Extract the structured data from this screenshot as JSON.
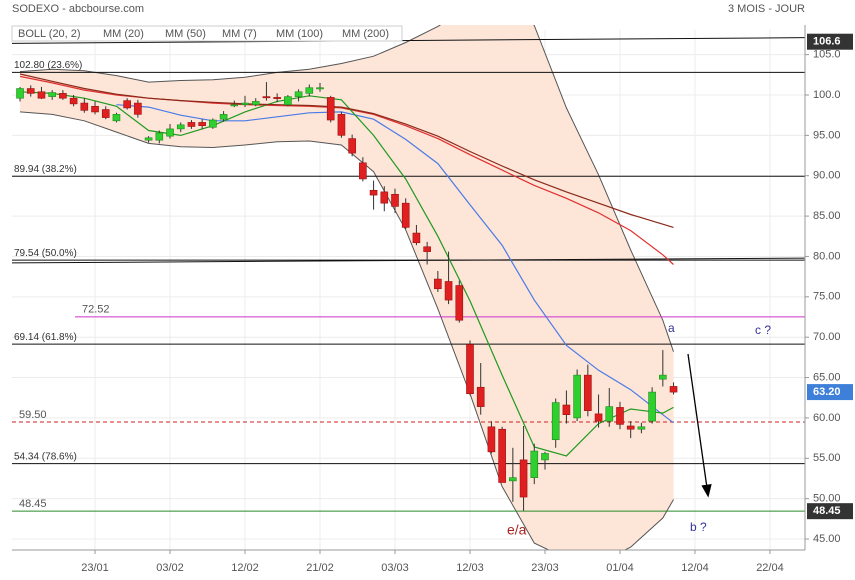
{
  "header": {
    "title": "SODEXO - abcbourse.com",
    "period": "3 MOIS - JOUR"
  },
  "chart_data": {
    "type": "candlestick",
    "xlim": [
      -0.75,
      73.27
    ],
    "xticks": [
      {
        "value": 7,
        "label": "23/01"
      },
      {
        "value": 14,
        "label": "03/02"
      },
      {
        "value": 21,
        "label": "12/02"
      },
      {
        "value": 28,
        "label": "21/02"
      },
      {
        "value": 35,
        "label": "03/03"
      },
      {
        "value": 42,
        "label": "12/03"
      },
      {
        "value": 49,
        "label": "23/03"
      },
      {
        "value": 56,
        "label": "01/04"
      },
      {
        "value": 63,
        "label": "12/04"
      },
      {
        "value": 70,
        "label": "22/04"
      }
    ],
    "ylim": [
      43.64,
      108.05
    ],
    "yticks": [
      {
        "value": 45,
        "label": "45.00"
      },
      {
        "value": 50,
        "label": "50.00"
      },
      {
        "value": 55,
        "label": "55.00"
      },
      {
        "value": 60,
        "label": "60.00"
      },
      {
        "value": 65,
        "label": "65.00"
      },
      {
        "value": 70,
        "label": "70.00"
      },
      {
        "value": 75,
        "label": "75.00"
      },
      {
        "value": 80,
        "label": "80.00"
      },
      {
        "value": 85,
        "label": "85.00"
      },
      {
        "value": 90,
        "label": "90.00"
      },
      {
        "value": 95,
        "label": "95.00"
      },
      {
        "value": 100,
        "label": "100.0"
      },
      {
        "value": 105,
        "label": "105.0"
      }
    ],
    "grid": true,
    "candles": {
      "up_color": "#2fcf2f",
      "down_color": "#e02020",
      "x": [
        0,
        1,
        2,
        3,
        4,
        5,
        6,
        7,
        8,
        9,
        10,
        11,
        12,
        13,
        14,
        15,
        16,
        17,
        18,
        19,
        20,
        21,
        22,
        23,
        24,
        25,
        26,
        27,
        28,
        29,
        30,
        31,
        32,
        33,
        34,
        35,
        36,
        37,
        38,
        39,
        40,
        41,
        42,
        43,
        44,
        45,
        46,
        47,
        48,
        49,
        50,
        51,
        52,
        53,
        54,
        55,
        56,
        57,
        58,
        59,
        60,
        61
      ],
      "open": [
        99.6,
        100.8,
        100.4,
        99.8,
        100.2,
        99.6,
        99.0,
        98.6,
        98.2,
        96.8,
        99.3,
        99.0,
        94.4,
        94.4,
        94.9,
        95.8,
        96.6,
        96.6,
        96.0,
        97.0,
        98.8,
        98.8,
        98.8,
        99.8,
        99.7,
        98.8,
        99.8,
        100.2,
        100.9,
        99.7,
        97.6,
        94.6,
        91.6,
        88.2,
        88.0,
        87.7,
        86.6,
        82.9,
        81.2,
        77.2,
        76.9,
        76.4,
        69.1,
        63.8,
        58.9,
        58.6,
        52.2,
        54.8,
        52.6,
        54.8,
        57.3,
        61.6,
        60.0,
        65.3,
        60.5,
        59.6,
        61.3,
        59.0,
        58.6,
        59.6,
        64.8,
        63.9
      ],
      "high": [
        101,
        101.2,
        101,
        100.6,
        100.6,
        100,
        99.6,
        99.2,
        98.6,
        97.8,
        99.6,
        99.4,
        94.9,
        95.6,
        96.4,
        96.6,
        96.9,
        97.0,
        97.1,
        98.0,
        99.3,
        99.9,
        99.6,
        101.6,
        100.2,
        100.0,
        100.7,
        101.3,
        101.5,
        99.9,
        97.9,
        95.1,
        92.3,
        89.4,
        88.7,
        88.4,
        87.2,
        83.9,
        81.8,
        78.2,
        80.6,
        77.0,
        69.6,
        66.8,
        59.6,
        58.9,
        56.3,
        59.0,
        56.8,
        55.8,
        62.4,
        63.4,
        66.0,
        66.6,
        62.9,
        63.7,
        62.0,
        59.6,
        59.4,
        63.8,
        68.4,
        64.4
      ],
      "low": [
        99.2,
        99.8,
        99.5,
        99.4,
        99.4,
        98.6,
        97.8,
        97.6,
        97.0,
        96.6,
        98.2,
        97.2,
        94.1,
        94.0,
        94.6,
        95.4,
        95.8,
        95.8,
        95.8,
        96.7,
        98.5,
        98.5,
        98.6,
        99.3,
        99.1,
        98.6,
        99.2,
        99.8,
        100.4,
        96.6,
        94.7,
        92.4,
        89.3,
        85.8,
        85.6,
        85.4,
        83.4,
        81.4,
        79.0,
        75.6,
        74.1,
        71.8,
        62.8,
        60.4,
        55.6,
        52.0,
        49.6,
        48.5,
        51.8,
        53.6,
        56.3,
        59.3,
        59.6,
        60.2,
        58.8,
        58.9,
        58.6,
        57.5,
        58.1,
        59.3,
        63.9,
        62.9
      ],
      "close": [
        100.8,
        100.2,
        99.6,
        100.3,
        99.6,
        98.9,
        98.1,
        97.9,
        97.2,
        97.6,
        98.4,
        97.6,
        94.7,
        95.3,
        95.8,
        96.3,
        96.1,
        96.2,
        96.9,
        97.6,
        98.8,
        99.0,
        99.2,
        99.7,
        99.6,
        99.8,
        100.4,
        100.9,
        100.9,
        96.9,
        95.0,
        92.8,
        89.6,
        87.6,
        86.6,
        86.2,
        83.6,
        81.7,
        80.6,
        76.0,
        74.6,
        72.1,
        63.0,
        61.4,
        55.8,
        52.0,
        52.6,
        50.2,
        55.9,
        55.6,
        61.9,
        60.4,
        65.3,
        60.9,
        59.6,
        61.4,
        59.2,
        58.6,
        58.9,
        63.2,
        65.3,
        63.2
      ]
    },
    "bollinger": {
      "name": "BOLL (20, 2)",
      "color": "#555555",
      "fill": "#fde5d8",
      "x": [
        0,
        3,
        6,
        9,
        12,
        15,
        18,
        21,
        24,
        27,
        30,
        33,
        36,
        39,
        42,
        45,
        48,
        51,
        54,
        57,
        60,
        61
      ],
      "upper": [
        102.9,
        103.2,
        103.0,
        102.4,
        101.6,
        101.8,
        101.9,
        102.2,
        102.8,
        103.2,
        103.9,
        104.8,
        106.5,
        108.5,
        111,
        113,
        108.6,
        98.4,
        90.1,
        80.8,
        72.1,
        68.2
      ],
      "lower": [
        97.9,
        97.6,
        96.8,
        95.4,
        94.0,
        93.6,
        93.5,
        93.8,
        94.2,
        94.3,
        93.8,
        90.5,
        83.3,
        73.5,
        63.0,
        51.5,
        44.5,
        42.6,
        42.0,
        44.0,
        47.6,
        49.9
      ]
    },
    "series": [
      {
        "name": "MM (20)",
        "color": "#4a7be6",
        "x": [
          0,
          3,
          6,
          9,
          12,
          15,
          18,
          21,
          24,
          27,
          30,
          33,
          36,
          39,
          42,
          45,
          48,
          51,
          54,
          57,
          60,
          61
        ],
        "values": [
          null,
          null,
          null,
          98.8,
          98.5,
          97.5,
          96.8,
          96.8,
          97.3,
          97.8,
          97.9,
          97.0,
          94.5,
          91.5,
          86.4,
          81.4,
          74.6,
          69.0,
          65.9,
          63.5,
          60.4,
          59.4
        ]
      },
      {
        "name": "MM (50)",
        "color": "#e03030",
        "x": [
          0,
          3,
          6,
          9,
          12,
          15,
          18,
          21,
          24,
          27,
          30,
          33,
          36,
          39,
          42,
          45,
          48,
          51,
          54,
          57,
          60,
          61
        ],
        "values": [
          102.3,
          101.5,
          100.6,
          100.0,
          99.6,
          99.3,
          99.0,
          98.8,
          98.7,
          98.6,
          98.4,
          97.6,
          96.2,
          94.6,
          92.6,
          90.7,
          88.8,
          87.2,
          85.4,
          83.2,
          80.2,
          79.0
        ]
      },
      {
        "name": "MM (7)",
        "color": "#1f9a1f",
        "x": [
          0,
          3,
          6,
          9,
          12,
          15,
          18,
          21,
          24,
          27,
          30,
          33,
          36,
          39,
          42,
          45,
          48,
          51,
          54,
          57,
          60,
          61
        ],
        "values": [
          100.4,
          100.2,
          99.6,
          98.6,
          95.6,
          95.0,
          96.2,
          97.9,
          99.2,
          99.9,
          99.4,
          95.0,
          89.6,
          82.5,
          74.5,
          65.3,
          56.4,
          55.3,
          59.3,
          61.1,
          60.6,
          61.3
        ]
      },
      {
        "name": "MM (100)",
        "color": "#f08a10",
        "x": [],
        "values": []
      },
      {
        "name": "MM (200)",
        "color": "#8b2a1a",
        "x": [
          0,
          3,
          6,
          9,
          12,
          15,
          18,
          21,
          24,
          27,
          30,
          33,
          36,
          39,
          42,
          45,
          48,
          51,
          54,
          57,
          60,
          61
        ],
        "values": [
          102.6,
          101.7,
          100.8,
          100.1,
          99.6,
          99.3,
          99.1,
          98.9,
          98.8,
          98.7,
          98.5,
          97.7,
          96.4,
          94.9,
          93.0,
          91.2,
          89.5,
          88.0,
          86.6,
          85.2,
          84.0,
          83.6
        ]
      }
    ],
    "fibonacci": [
      {
        "value": 102.8,
        "label": "102.80 (23.6%)"
      },
      {
        "value": 89.94,
        "label": "89.94 (38.2%)"
      },
      {
        "value": 79.54,
        "label": "79.54 (50.0%)"
      },
      {
        "value": 69.14,
        "label": "69.14 (61.8%)"
      },
      {
        "value": 54.34,
        "label": "54.34 (78.6%)"
      }
    ],
    "levels": [
      {
        "value": 72.52,
        "color": "#cc33cc",
        "dashed": false
      },
      {
        "value": 59.5,
        "label": "59.50",
        "color": "#cc2222",
        "dashed": true
      },
      {
        "value": 48.45,
        "color": "#2a8a2a",
        "dashed": false
      }
    ],
    "trendlines": [
      {
        "start": [
          -0.75,
          106.4
        ],
        "end": [
          73.27,
          107.1
        ]
      },
      {
        "start": [
          -0.75,
          79.2
        ],
        "end": [
          73.27,
          79.8
        ]
      }
    ],
    "price_tags": [
      {
        "value": 106.6,
        "color": "#333333"
      },
      {
        "value": 63.2,
        "label": "63.20",
        "color": "#3d7fd9"
      },
      {
        "value": 48.45,
        "color": "#333333"
      }
    ],
    "annotations": [
      {
        "text": "a",
        "color": "#333399"
      },
      {
        "text": "c ?",
        "color": "#333399"
      },
      {
        "text": "b ?",
        "color": "#333399"
      },
      {
        "text": "e/a",
        "color": "#aa2222"
      }
    ]
  }
}
